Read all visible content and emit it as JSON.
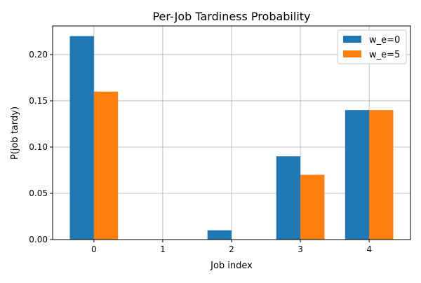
{
  "chart_data": {
    "type": "bar",
    "title": "Per-Job Tardiness Probability",
    "xlabel": "Job index",
    "ylabel": "P(job tardy)",
    "categories": [
      "0",
      "1",
      "2",
      "3",
      "4"
    ],
    "series": [
      {
        "name": "w_e=0",
        "color": "#1f77b4",
        "values": [
          0.22,
          0.0,
          0.01,
          0.09,
          0.14
        ]
      },
      {
        "name": "w_e=5",
        "color": "#ff7f0e",
        "values": [
          0.16,
          0.0,
          0.0,
          0.07,
          0.14
        ]
      }
    ],
    "ylim": [
      0,
      0.231
    ],
    "yticks": [
      "0.00",
      "0.05",
      "0.10",
      "0.15",
      "0.20"
    ],
    "grid": true,
    "legend_position": "top-right"
  }
}
